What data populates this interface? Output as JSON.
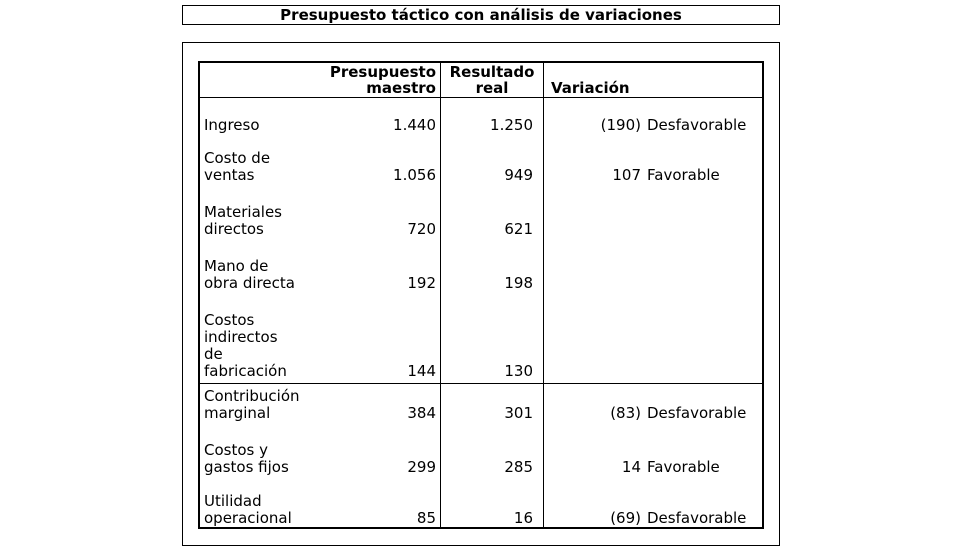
{
  "title": "Presupuesto táctico con análisis de variaciones",
  "table": {
    "headers": {
      "presupuesto": "Presupuesto\nmaestro",
      "real": "Resultado\nreal",
      "variacion": "Variación"
    },
    "rows": [
      {
        "label": "Ingreso",
        "presupuesto": "1.440",
        "real": "1.250",
        "variacion": "(190)",
        "tipo": "Desfavorable"
      },
      {
        "label": "Costo de\nventas",
        "presupuesto": "1.056",
        "real": "949",
        "variacion": "107",
        "tipo": "Favorable"
      },
      {
        "label": "Materiales\ndirectos",
        "presupuesto": "720",
        "real": "621",
        "variacion": "",
        "tipo": ""
      },
      {
        "label": "Mano de\nobra directa",
        "presupuesto": "192",
        "real": "198",
        "variacion": "",
        "tipo": ""
      },
      {
        "label": "Costos\nindirectos\nde\nfabricación",
        "presupuesto": "144",
        "real": "130",
        "variacion": "",
        "tipo": ""
      },
      {
        "label": "Contribución\nmarginal",
        "presupuesto": "384",
        "real": "301",
        "variacion": "(83)",
        "tipo": "Desfavorable"
      },
      {
        "label": "Costos y\ngastos fijos",
        "presupuesto": "299",
        "real": "285",
        "variacion": "14",
        "tipo": "Favorable"
      },
      {
        "label": "Utilidad\noperacional",
        "presupuesto": "85",
        "real": "16",
        "variacion": "(69)",
        "tipo": "Desfavorable"
      }
    ]
  },
  "colors": {
    "text": "#000000",
    "border": "#000000",
    "background": "#ffffff"
  }
}
